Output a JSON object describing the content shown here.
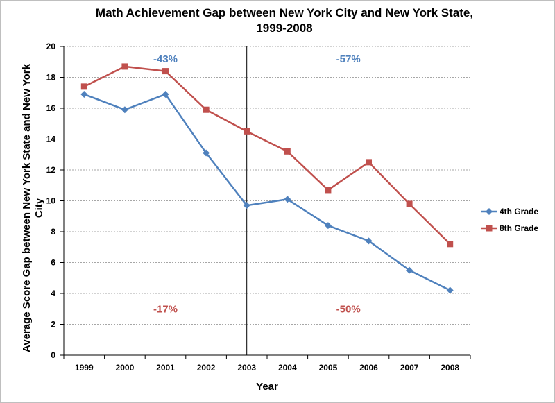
{
  "colors": {
    "series_4th": "#4f81bd",
    "series_8th": "#c0504d",
    "grid": "#a6a6a6",
    "axis": "#000000"
  },
  "chart_data": {
    "type": "line",
    "title_line1": "Math Achievement Gap between New York City and New York State,",
    "title_line2": "1999-2008",
    "xlabel": "Year",
    "ylabel_line1": "Average Score Gap between New York State and New York",
    "ylabel_line2": "City",
    "ylim": [
      0,
      20
    ],
    "ytick_step": 2,
    "yticks": [
      "0",
      "2",
      "4",
      "6",
      "8",
      "10",
      "12",
      "14",
      "16",
      "18",
      "20"
    ],
    "grid": true,
    "legend_position": "right",
    "categories": [
      "1999",
      "2000",
      "2001",
      "2002",
      "2003",
      "2004",
      "2005",
      "2006",
      "2007",
      "2008"
    ],
    "series": [
      {
        "name": "4th Grade",
        "marker": "diamond",
        "values": [
          16.9,
          15.9,
          16.9,
          13.1,
          9.7,
          10.1,
          8.4,
          7.4,
          5.5,
          4.2
        ]
      },
      {
        "name": "8th Grade",
        "marker": "square",
        "values": [
          17.4,
          18.7,
          18.4,
          15.9,
          14.5,
          13.2,
          10.7,
          12.5,
          9.8,
          7.2
        ]
      }
    ],
    "divider_at": "2003",
    "annotations": [
      {
        "text": "-43%",
        "series": "4th Grade",
        "x_between": [
          "2000",
          "2002"
        ],
        "y": 19.2
      },
      {
        "text": "-57%",
        "series": "4th Grade",
        "x_between": [
          "2005",
          "2006"
        ],
        "y": 19.2
      },
      {
        "text": "-17%",
        "series": "8th Grade",
        "x_between": [
          "2000",
          "2002"
        ],
        "y": 3.0
      },
      {
        "text": "-50%",
        "series": "8th Grade",
        "x_between": [
          "2005",
          "2006"
        ],
        "y": 3.0
      }
    ]
  }
}
